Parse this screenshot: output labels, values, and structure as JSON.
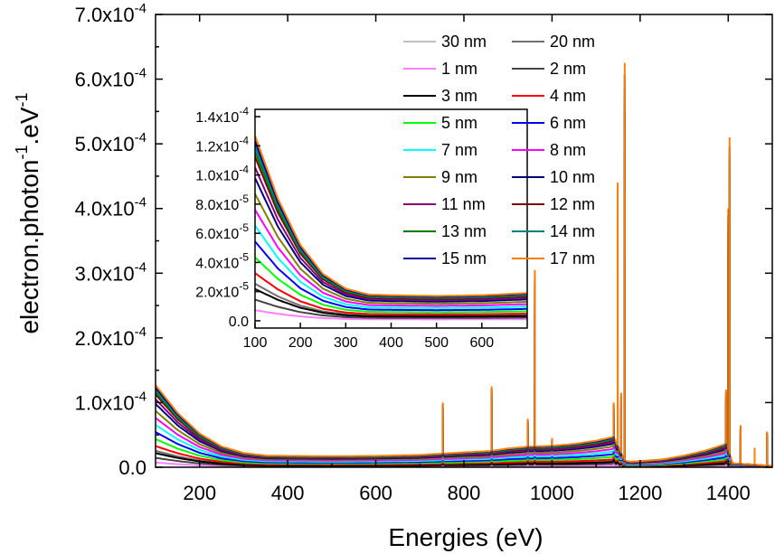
{
  "chart_data": {
    "type": "line",
    "title": "",
    "xlabel": "Energies (eV)",
    "ylabel": "electron.photon-1.eV-1",
    "ylabel_parts": [
      "electron.photon",
      "-1",
      ".eV",
      "-1"
    ],
    "xlim": [
      100,
      1500
    ],
    "ylim": [
      0,
      0.0007
    ],
    "x_ticks": [
      200,
      400,
      600,
      800,
      1000,
      1200,
      1400
    ],
    "x_tick_labels": [
      "200",
      "400",
      "600",
      "800",
      "1000",
      "1200",
      "1400"
    ],
    "y_ticks": [
      0,
      0.0001,
      0.0002,
      0.0003,
      0.0004,
      0.0005,
      0.0006,
      0.0007
    ],
    "y_tick_labels": [
      {
        "mant": "0.0",
        "exp": ""
      },
      {
        "mant": "1.0x10",
        "exp": "-4"
      },
      {
        "mant": "2.0x10",
        "exp": "-4"
      },
      {
        "mant": "3.0x10",
        "exp": "-4"
      },
      {
        "mant": "4.0x10",
        "exp": "-4"
      },
      {
        "mant": "5.0x10",
        "exp": "-4"
      },
      {
        "mant": "6.0x10",
        "exp": "-4"
      },
      {
        "mant": "7.0x10",
        "exp": "-4"
      }
    ],
    "legend_position": "top-right",
    "series": [
      {
        "name": "30 nm",
        "color": "#c0c0c0",
        "base": 4.5e-06
      },
      {
        "name": "20 nm",
        "color": "#707070",
        "base": 3.5e-06
      },
      {
        "name": "1 nm",
        "color": "#ff80ff",
        "base": 1e-06
      },
      {
        "name": "2 nm",
        "color": "#444444",
        "base": 2e-06
      },
      {
        "name": "3 nm",
        "color": "#000000",
        "base": 3e-06
      },
      {
        "name": "4 nm",
        "color": "#ff0000",
        "base": 4.5e-06
      },
      {
        "name": "5 nm",
        "color": "#00ff00",
        "base": 6e-06
      },
      {
        "name": "6 nm",
        "color": "#0000ff",
        "base": 7.5e-06
      },
      {
        "name": "7 nm",
        "color": "#00ffff",
        "base": 9e-06
      },
      {
        "name": "8 nm",
        "color": "#ff00ff",
        "base": 1.05e-05
      },
      {
        "name": "9 nm",
        "color": "#808000",
        "base": 1.2e-05
      },
      {
        "name": "10 nm",
        "color": "#000080",
        "base": 1.35e-05
      },
      {
        "name": "11 nm",
        "color": "#800080",
        "base": 1.45e-05
      },
      {
        "name": "12 nm",
        "color": "#800000",
        "base": 1.55e-05
      },
      {
        "name": "13 nm",
        "color": "#008000",
        "base": 1.6e-05
      },
      {
        "name": "14 nm",
        "color": "#008080",
        "base": 1.65e-05
      },
      {
        "name": "15 nm",
        "color": "#000099",
        "base": 1.7e-05
      },
      {
        "name": "17 nm",
        "color": "#ff8000",
        "base": 1.75e-05
      }
    ],
    "curve_shape": {
      "x": [
        100,
        150,
        200,
        250,
        300,
        350,
        400,
        500,
        600,
        700,
        750,
        800,
        860,
        900,
        950,
        1000,
        1050,
        1100,
        1140,
        1165,
        1180,
        1250,
        1300,
        1350,
        1395,
        1410,
        1450,
        1500
      ],
      "y": [
        0.000127,
        8.4e-05,
        5.2e-05,
        3.2e-05,
        2.2e-05,
        1.8e-05,
        1.75e-05,
        1.7e-05,
        1.75e-05,
        1.9e-05,
        2.1e-05,
        2.3e-05,
        2.5e-05,
        2.9e-05,
        3.2e-05,
        3.3e-05,
        3.6e-05,
        4.1e-05,
        4.7e-05,
        1e-05,
        8.5e-06,
        1.2e-05,
        1.8e-05,
        2.6e-05,
        3.6e-05,
        6e-06,
        4.5e-06,
        2e-06
      ]
    },
    "peaks": [
      {
        "x": 752,
        "y": 0.0001
      },
      {
        "x": 863,
        "y": 0.000125
      },
      {
        "x": 945,
        "y": 7.5e-05
      },
      {
        "x": 961,
        "y": 0.000305
      },
      {
        "x": 1000,
        "y": 4.5e-05
      },
      {
        "x": 1140,
        "y": 0.0001
      },
      {
        "x": 1149,
        "y": 0.00044
      },
      {
        "x": 1157,
        "y": 0.000115
      },
      {
        "x": 1165,
        "y": 0.000625
      },
      {
        "x": 1395,
        "y": 0.00012
      },
      {
        "x": 1400,
        "y": 0.0004
      },
      {
        "x": 1403,
        "y": 0.00051
      },
      {
        "x": 1428,
        "y": 6.5e-05
      },
      {
        "x": 1460,
        "y": 3e-05
      },
      {
        "x": 1488,
        "y": 5.5e-05
      }
    ],
    "inset": {
      "xlim": [
        100,
        700
      ],
      "ylim": [
        -5e-06,
        0.000145
      ],
      "x_ticks": [
        100,
        200,
        300,
        400,
        500,
        600
      ],
      "x_tick_labels": [
        "100",
        "200",
        "300",
        "400",
        "500",
        "600"
      ],
      "y_ticks": [
        0,
        2e-05,
        4e-05,
        6e-05,
        8e-05,
        0.0001,
        0.00012,
        0.00014
      ],
      "y_tick_labels": [
        {
          "mant": "0.0",
          "exp": ""
        },
        {
          "mant": "2.0x10",
          "exp": "-5"
        },
        {
          "mant": "4.0x10",
          "exp": "-5"
        },
        {
          "mant": "6.0x10",
          "exp": "-5"
        },
        {
          "mant": "8.0x10",
          "exp": "-5"
        },
        {
          "mant": "1.0x10",
          "exp": "-4"
        },
        {
          "mant": "1.2x10",
          "exp": "-4"
        },
        {
          "mant": "1.4x10",
          "exp": "-4"
        }
      ]
    }
  }
}
